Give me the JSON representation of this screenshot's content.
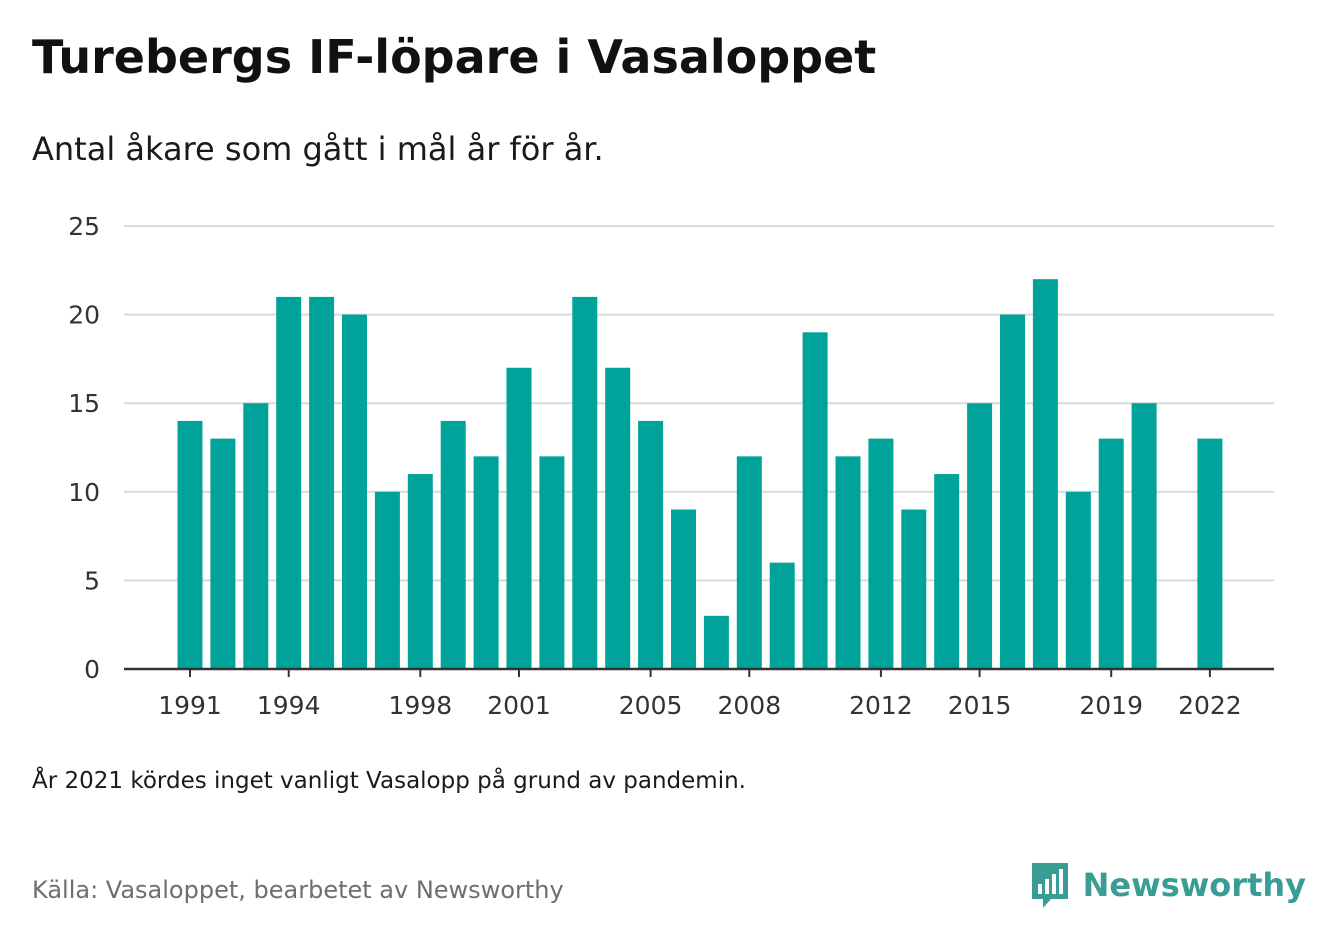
{
  "title": "Turebergs IF-löpare i Vasaloppet",
  "subtitle": "Antal åkare som gått i mål år för år.",
  "note": "År 2021 kördes inget vanligt Vasalopp på grund av pandemin.",
  "source": "Källa: Vasaloppet, bearbetet av Newsworthy",
  "brand": {
    "name": "Newsworthy",
    "icon": "newsworthy-logo-icon"
  },
  "colors": {
    "bar": "#00a39a",
    "grid": "#d9d9d9",
    "axis": "#333333",
    "brand": "#3a9d95"
  },
  "chart_data": {
    "type": "bar",
    "categories": [
      "1991",
      "1992",
      "1993",
      "1994",
      "1995",
      "1996",
      "1997",
      "1998",
      "1999",
      "2000",
      "2001",
      "2002",
      "2003",
      "2004",
      "2005",
      "2006",
      "2007",
      "2008",
      "2009",
      "2010",
      "2011",
      "2012",
      "2013",
      "2014",
      "2015",
      "2016",
      "2017",
      "2018",
      "2019",
      "2020",
      "2021",
      "2022"
    ],
    "values": [
      14,
      13,
      15,
      21,
      21,
      20,
      10,
      11,
      14,
      12,
      17,
      12,
      21,
      17,
      14,
      9,
      3,
      12,
      6,
      19,
      12,
      13,
      9,
      11,
      15,
      20,
      22,
      10,
      13,
      15,
      null,
      13
    ],
    "x_tick_labels": [
      "1991",
      "1994",
      "1998",
      "2001",
      "2005",
      "2008",
      "2012",
      "2015",
      "2019",
      "2022"
    ],
    "y_ticks": [
      0,
      5,
      10,
      15,
      20,
      25
    ],
    "ylim": [
      0,
      25
    ],
    "grid": true,
    "legend": "none"
  }
}
